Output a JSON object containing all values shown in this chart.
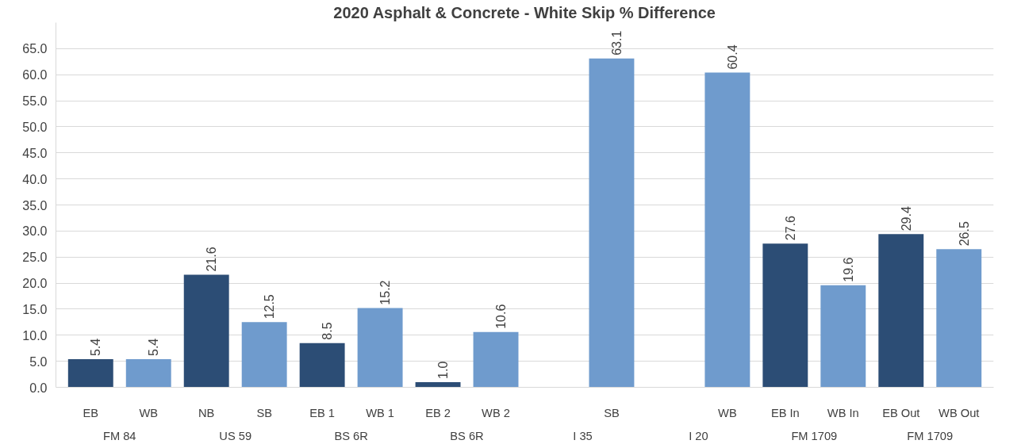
{
  "chart_data": {
    "type": "bar",
    "title": "2020 Asphalt & Concrete - White Skip % Difference",
    "categories": [
      "EB",
      "WB",
      "NB",
      "SB",
      "EB 1",
      "WB 1",
      "EB 2",
      "WB 2",
      null,
      "SB",
      null,
      "WB",
      "EB In",
      "WB In",
      "EB Out",
      "WB Out"
    ],
    "values": [
      5.4,
      5.4,
      21.6,
      12.5,
      8.5,
      15.2,
      1.0,
      10.6,
      null,
      63.1,
      null,
      60.4,
      27.6,
      19.6,
      29.4,
      26.5
    ],
    "value_labels": [
      "5.4",
      "5.4",
      "21.6",
      "12.5",
      "8.5",
      "15.2",
      "1.0",
      "10.6",
      null,
      "63.1",
      null,
      "60.4",
      "27.6",
      "19.6",
      "29.4",
      "26.5"
    ],
    "colors": [
      "#2c4d75",
      "#6f9bcd",
      "#2c4d75",
      "#6f9bcd",
      "#2c4d75",
      "#6f9bcd",
      "#2c4d75",
      "#6f9bcd",
      null,
      "#6f9bcd",
      null,
      "#6f9bcd",
      "#2c4d75",
      "#6f9bcd",
      "#2c4d75",
      "#6f9bcd"
    ],
    "annotations": [
      "FM 84",
      "US 59",
      "BS 6R",
      "BS 6R",
      "I 35",
      "I 20",
      "FM 1709",
      "FM 1709"
    ],
    "ylim": [
      0,
      70
    ],
    "yticks": [
      {
        "value": 0,
        "label": "0.0"
      },
      {
        "value": 5,
        "label": "5.0"
      },
      {
        "value": 10,
        "label": "10.0"
      },
      {
        "value": 15,
        "label": "15.0"
      },
      {
        "value": 20,
        "label": "20.0"
      },
      {
        "value": 25,
        "label": "25.0"
      },
      {
        "value": 30,
        "label": "30.0"
      },
      {
        "value": 35,
        "label": "35.0"
      },
      {
        "value": 40,
        "label": "40.0"
      },
      {
        "value": 45,
        "label": "45.0"
      },
      {
        "value": 50,
        "label": "50.0"
      },
      {
        "value": 55,
        "label": "55.0"
      },
      {
        "value": 60,
        "label": "60.0"
      },
      {
        "value": 65,
        "label": "65.0"
      }
    ],
    "grid": "y"
  }
}
